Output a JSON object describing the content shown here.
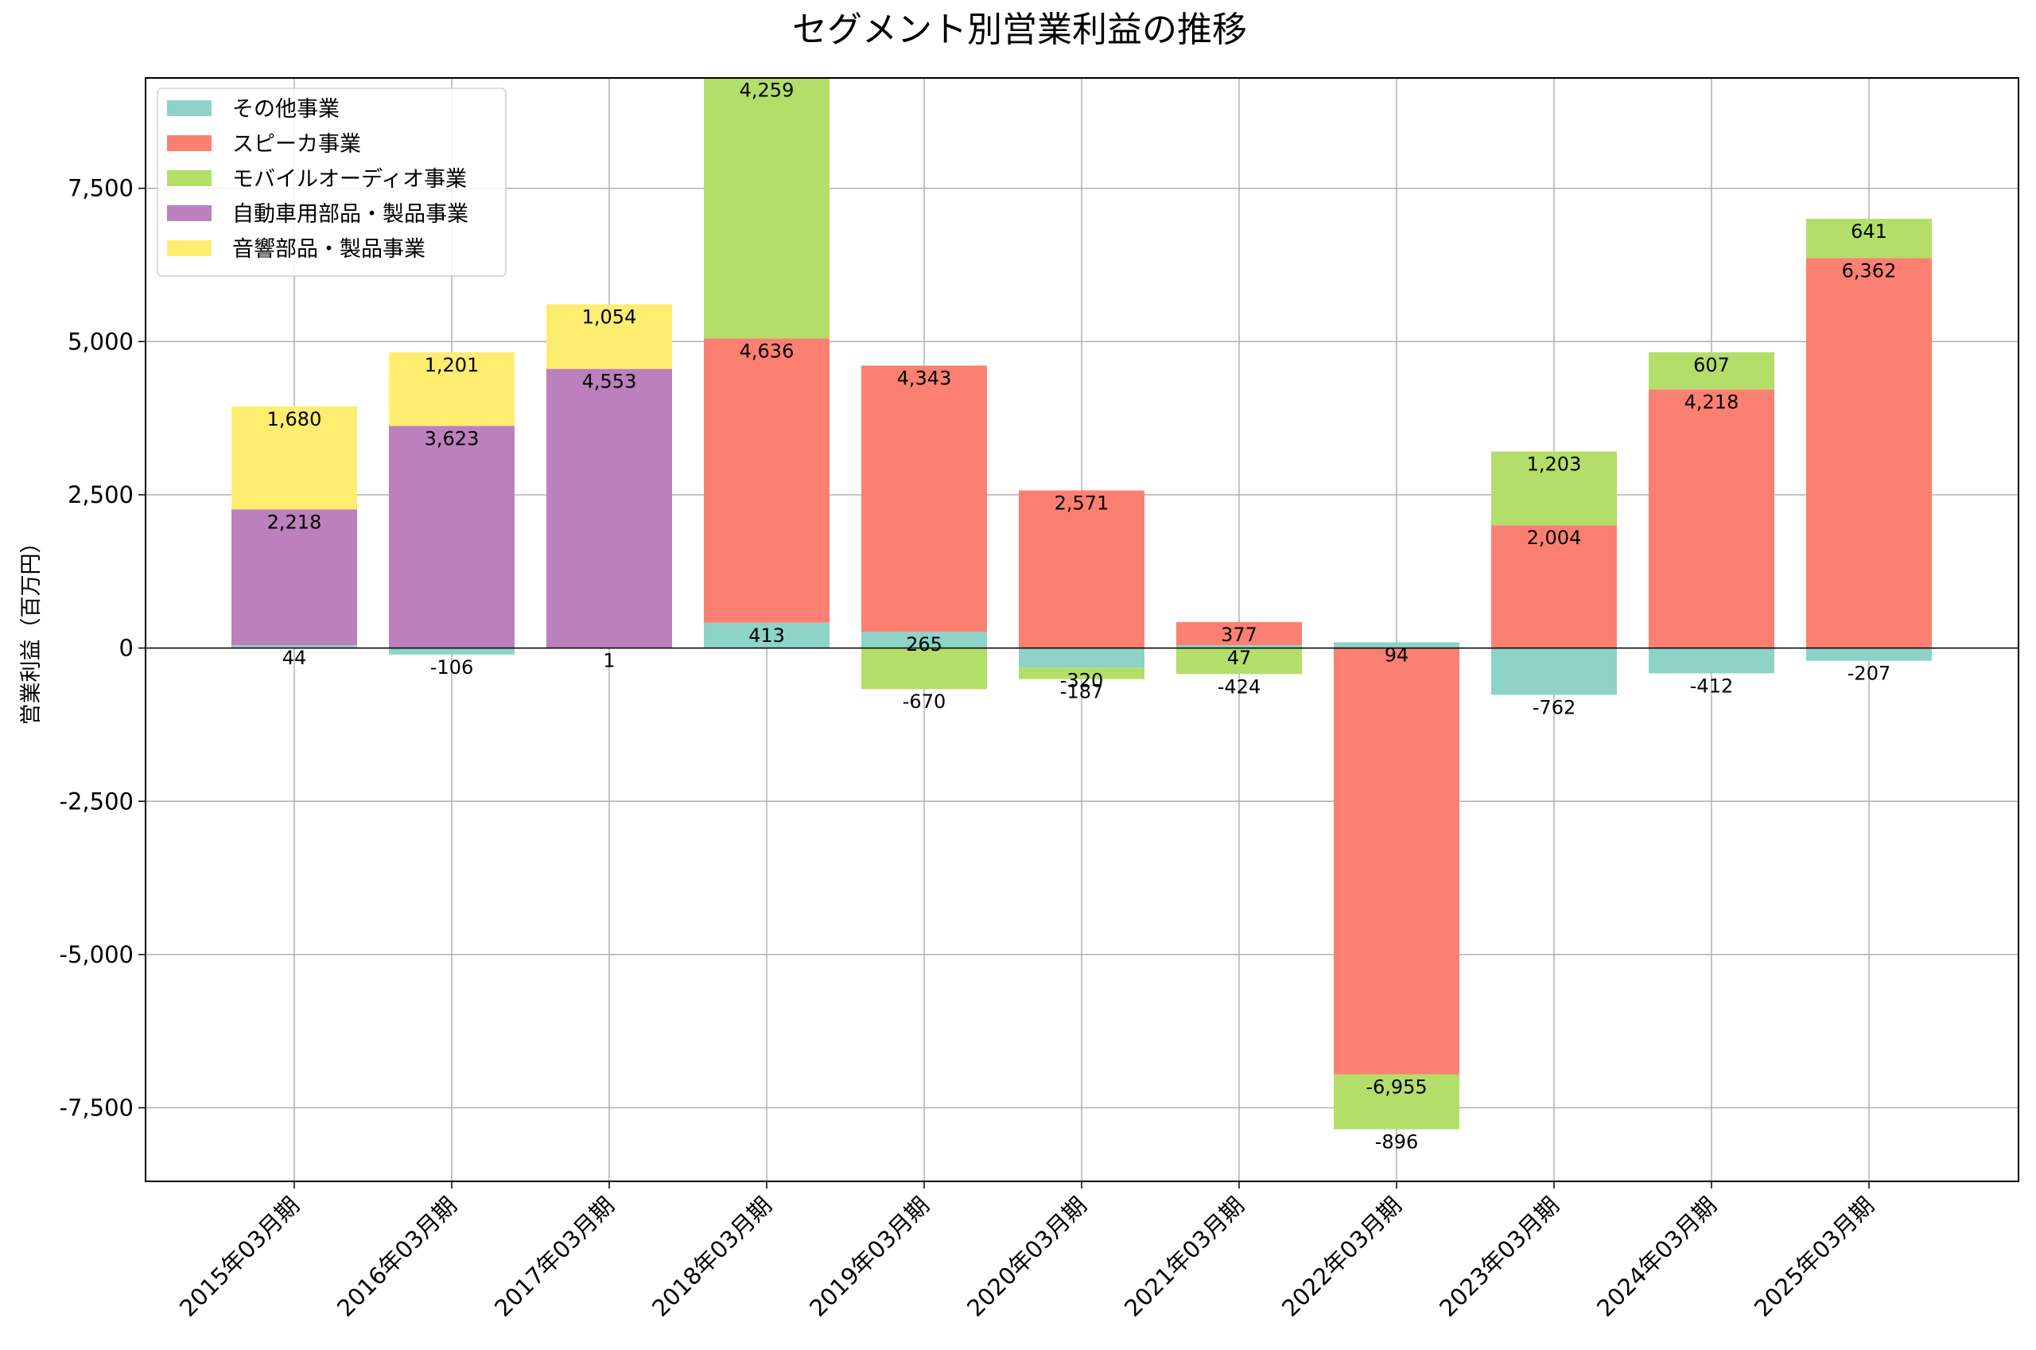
{
  "chart_data": {
    "type": "bar",
    "stacked": true,
    "title": "セグメント別営業利益の推移",
    "xlabel": "",
    "ylabel": "営業利益（百万円）",
    "ylim": [
      -8700,
      9300
    ],
    "yticks": [
      -7500,
      -5000,
      -2500,
      0,
      2500,
      5000,
      7500
    ],
    "ytick_labels": [
      "-7,500",
      "-5,000",
      "-2,500",
      "0",
      "2,500",
      "5,000",
      "7,500"
    ],
    "grid": true,
    "legend_position": "top-left",
    "categories": [
      "2015年03月期",
      "2016年03月期",
      "2017年03月期",
      "2018年03月期",
      "2019年03月期",
      "2020年03月期",
      "2021年03月期",
      "2022年03月期",
      "2023年03月期",
      "2024年03月期",
      "2025年03月期"
    ],
    "series": [
      {
        "name": "その他事業",
        "color": "#8dd3c7",
        "values": [
          44,
          -106,
          1,
          413,
          265,
          -320,
          47,
          94,
          -762,
          -412,
          -207
        ]
      },
      {
        "name": "スピーカ事業",
        "color": "#fb8072",
        "values": [
          null,
          null,
          null,
          4636,
          4343,
          2571,
          377,
          -6955,
          2004,
          4218,
          6362
        ]
      },
      {
        "name": "モバイルオーディオ事業",
        "color": "#b3de69",
        "values": [
          null,
          null,
          null,
          4259,
          -670,
          -187,
          -424,
          -896,
          1203,
          607,
          641
        ]
      },
      {
        "name": "自動車用部品・製品事業",
        "color": "#bc80bd",
        "values": [
          2218,
          3623,
          4553,
          null,
          null,
          null,
          null,
          null,
          null,
          null,
          null
        ]
      },
      {
        "name": "音響部品・製品事業",
        "color": "#ffed6f",
        "values": [
          1680,
          1201,
          1054,
          null,
          null,
          null,
          null,
          null,
          null,
          null,
          null
        ]
      }
    ]
  }
}
